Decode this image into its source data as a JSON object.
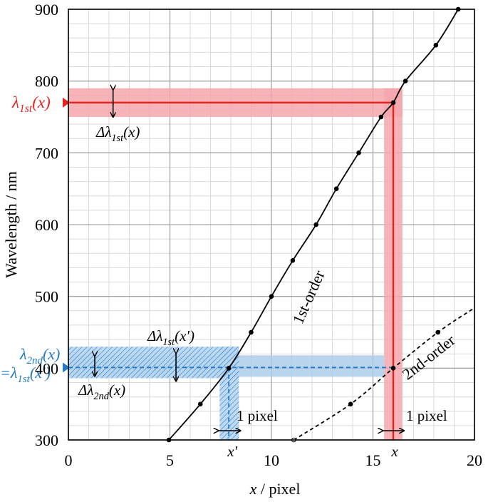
{
  "chart_data": {
    "type": "line",
    "title": "",
    "xlabel": "x / pixel",
    "ylabel": "Wavelength / nm",
    "xlim": [
      0,
      20
    ],
    "ylim": [
      300,
      900
    ],
    "xticks": [
      0,
      5,
      10,
      15,
      20
    ],
    "yticks": [
      300,
      400,
      500,
      600,
      700,
      800,
      900
    ],
    "grid": true,
    "series": [
      {
        "name": "1st-order",
        "style": "solid",
        "color": "#000000",
        "x": [
          4.95,
          6.5,
          7.9,
          9.0,
          10.0,
          11.05,
          12.2,
          13.2,
          14.3,
          15.4,
          16.0,
          16.6,
          18.1,
          19.2
        ],
        "y": [
          300,
          350,
          400,
          450,
          500,
          550,
          600,
          650,
          700,
          750,
          770,
          800,
          850,
          900
        ]
      },
      {
        "name": "2nd-order",
        "style": "dashed",
        "color": "#000000",
        "x": [
          11.1,
          13.9,
          16.0,
          18.2,
          20.0
        ],
        "y": [
          300,
          350,
          400,
          450,
          484
        ]
      }
    ],
    "annotations": {
      "first_order_label": "1st-order",
      "second_order_label": "2nd-order",
      "lambda_1st_label": "λ1st(x)",
      "delta_lambda_1st_label": "Δλ1st(x)",
      "delta_lambda_1st_prime_label": "Δλ1st(x′)",
      "lambda_2nd_label": "λ2nd(x)",
      "lambda_2nd_equals_label": "=λ1st(x′)",
      "delta_lambda_2nd_label": "Δλ2nd(x)",
      "one_pixel_label_1": "1 pixel",
      "one_pixel_label_2": "1 pixel",
      "x_marker_label": "x",
      "x_prime_marker_label": "x′"
    },
    "markers": {
      "x": 16.0,
      "lambda_1st_at_x": 770,
      "x_prime": 7.9,
      "lambda_2nd_at_x": 401,
      "red_band_lambda": [
        750,
        790
      ],
      "red_band_x": [
        15.55,
        16.45
      ],
      "blue_band_lambda": [
        388,
        418
      ],
      "blue_band_x": [
        7.45,
        8.4
      ]
    },
    "colors": {
      "red": "#e8231f",
      "red_band": "#f4a6ac",
      "blue": "#1f78c8",
      "blue_band": "#a7cbea",
      "grid_major": "#a6a6a6",
      "grid_minor": "#d9d9d9"
    }
  }
}
